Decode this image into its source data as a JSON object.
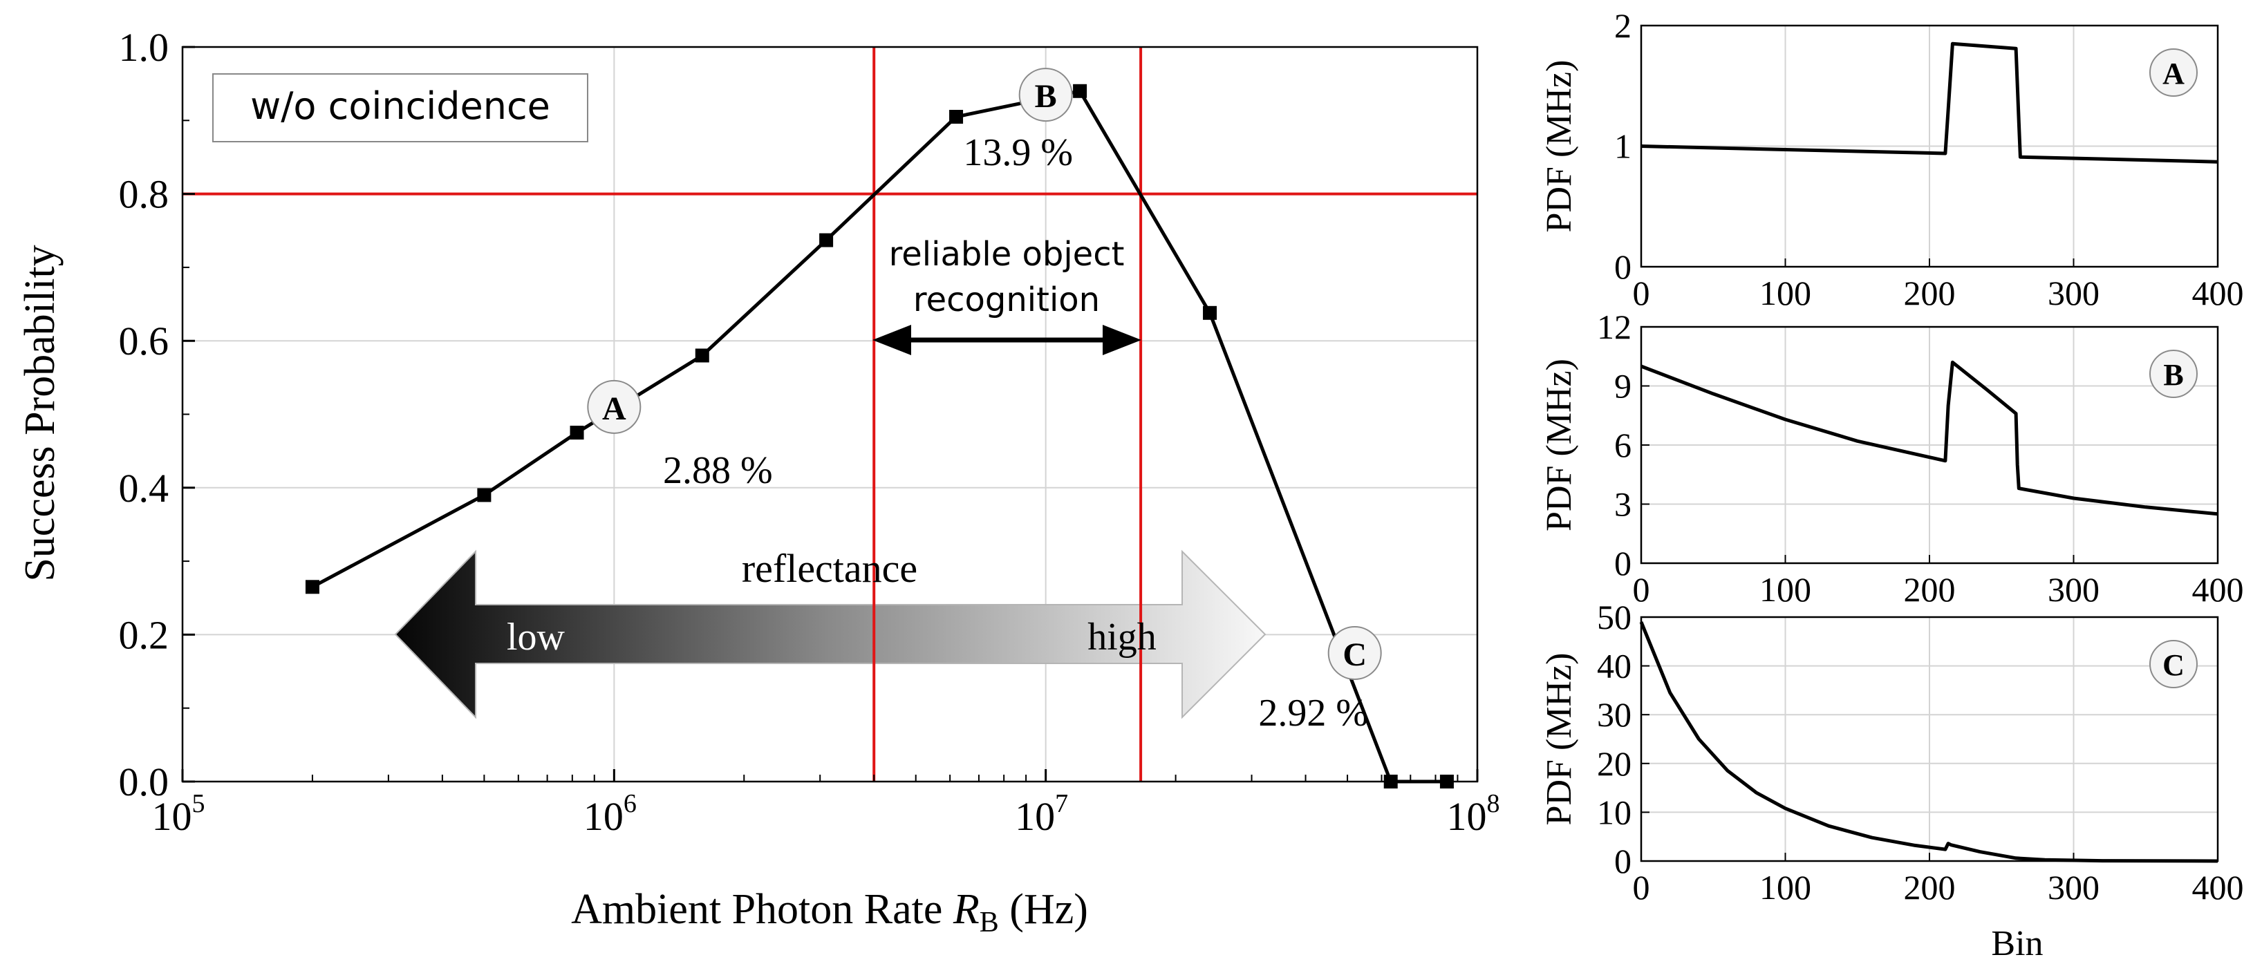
{
  "chart_data": [
    {
      "type": "line",
      "xscale": "log",
      "xlim": [
        100000,
        100000000
      ],
      "ylim": [
        0,
        1.0
      ],
      "xlabel": "Ambient Photon Rate",
      "xlabel_var": "R",
      "xlabel_sub": "B",
      "xlabel_unit": "(Hz)",
      "ylabel": "Success Probability",
      "xtick_bases": [
        "10",
        "10",
        "10",
        "10"
      ],
      "xtick_exps": [
        "5",
        "6",
        "7",
        "8"
      ],
      "ytick_labels": [
        "0.0",
        "0.2",
        "0.4",
        "0.6",
        "0.8",
        "1.0"
      ],
      "yticks": [
        0,
        0.2,
        0.4,
        0.6,
        0.8,
        1.0
      ],
      "series": [
        {
          "name": "success probability",
          "x": [
            200000,
            500000,
            820000,
            1600000,
            3100000,
            6200000,
            12000000,
            24000000,
            63000000,
            85000000
          ],
          "y": [
            0.265,
            0.39,
            0.475,
            0.58,
            0.737,
            0.905,
            0.94,
            0.638,
            0.0,
            0.0
          ]
        }
      ],
      "threshold_y": 0.8,
      "threshold_x": [
        4000000,
        16600000
      ],
      "legend_text": "w/o coincidence",
      "range_label_line1": "reliable object",
      "range_label_line2": "recognition",
      "gradient_arrow": {
        "title": "reflectance",
        "left": "low",
        "right": "high"
      },
      "markers": [
        {
          "label": "A",
          "x": 1000000,
          "y": 0.51,
          "text": "2.88 %"
        },
        {
          "label": "B",
          "x": 10000000,
          "y": 0.935,
          "text": "13.9 %"
        },
        {
          "label": "C",
          "x": 52000000,
          "y": 0.175,
          "text": "2.92 %"
        }
      ]
    },
    {
      "type": "line",
      "panel": "A",
      "xlim": [
        0,
        400
      ],
      "ylim": [
        0,
        2
      ],
      "xticks": [
        0,
        100,
        200,
        300,
        400
      ],
      "xtick_labels": [
        "0",
        "100",
        "200",
        "300",
        "400"
      ],
      "yticks": [
        0,
        1,
        2
      ],
      "ytick_labels": [
        "0",
        "1",
        "2"
      ],
      "ylabel": "PDF (MHz)",
      "x": [
        0,
        211,
        213,
        216,
        260,
        262,
        263,
        400
      ],
      "y": [
        1.0,
        0.94,
        1.3,
        1.85,
        1.81,
        1.2,
        0.91,
        0.87
      ]
    },
    {
      "type": "line",
      "panel": "B",
      "xlim": [
        0,
        400
      ],
      "ylim": [
        0,
        12
      ],
      "xticks": [
        0,
        100,
        200,
        300,
        400
      ],
      "xtick_labels": [
        "0",
        "100",
        "200",
        "300",
        "400"
      ],
      "yticks": [
        0,
        3,
        6,
        9,
        12
      ],
      "ytick_labels": [
        "0",
        "3",
        "6",
        "9",
        "12"
      ],
      "ylabel": "PDF (MHz)",
      "x": [
        0,
        50,
        100,
        150,
        211,
        213,
        216,
        240,
        260,
        261,
        262,
        300,
        350,
        400
      ],
      "y": [
        10.0,
        8.6,
        7.3,
        6.2,
        5.2,
        8.0,
        10.2,
        8.8,
        7.6,
        5.0,
        3.8,
        3.3,
        2.85,
        2.5
      ]
    },
    {
      "type": "line",
      "panel": "C",
      "xlim": [
        0,
        400
      ],
      "ylim": [
        0,
        50
      ],
      "xticks": [
        0,
        100,
        200,
        300,
        400
      ],
      "xtick_labels": [
        "0",
        "100",
        "200",
        "300",
        "400"
      ],
      "yticks": [
        0,
        10,
        20,
        30,
        40,
        50
      ],
      "ytick_labels": [
        "0",
        "10",
        "20",
        "30",
        "40",
        "50"
      ],
      "ylabel": "PDF (MHz)",
      "xlabel": "Bin",
      "x": [
        0,
        20,
        40,
        60,
        80,
        100,
        130,
        160,
        190,
        211,
        213,
        215,
        235,
        260,
        280,
        320,
        400
      ],
      "y": [
        49.0,
        34.5,
        25.0,
        18.5,
        14.0,
        10.8,
        7.2,
        4.8,
        3.2,
        2.4,
        3.6,
        3.3,
        1.9,
        0.6,
        0.25,
        0.05,
        0.0
      ]
    }
  ]
}
